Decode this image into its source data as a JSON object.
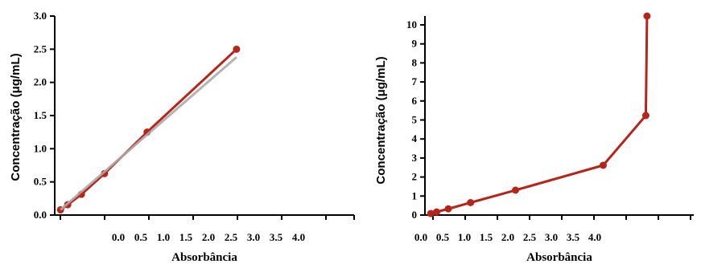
{
  "chart_data": [
    {
      "type": "line",
      "xlabel": "Absorbância",
      "ylabel": "Concentração (μg/mL)",
      "xlim": [
        -0.05,
        4.1
      ],
      "ylim": [
        0,
        3.0
      ],
      "x_tick_labels": [
        "0.0",
        "0.5",
        "1.0",
        "1.5",
        "2.0",
        "2.5",
        "3.0",
        "3.5",
        "4.0"
      ],
      "y_tick_labels": [
        "0.0",
        "0.5",
        "1.0",
        "1.5",
        "2.0",
        "2.5",
        "3.0"
      ],
      "series": [
        {
          "values": [
            [
              0.03,
              0.078
            ],
            [
              0.13,
              0.156
            ],
            [
              0.32,
              0.3125
            ],
            [
              0.64,
              0.625
            ],
            [
              1.23,
              1.25
            ],
            [
              2.47,
              2.5
            ]
          ],
          "color": "#b5251a"
        },
        {
          "kind": "fit",
          "values": [
            [
              0.03,
              0.08
            ],
            [
              2.47,
              2.38
            ]
          ],
          "color": "#b0a8a8"
        }
      ]
    },
    {
      "type": "line",
      "xlabel": "Absorbância",
      "ylabel": "Concentração (μg/mL)",
      "xlim": [
        0,
        4.6
      ],
      "ylim": [
        0,
        10
      ],
      "x_tick_labels": [
        "0.0",
        "0.5",
        "1.0",
        "1.5",
        "2.0",
        "2.5",
        "3.0",
        "3.5",
        "4.0"
      ],
      "y_tick_labels": [
        "0",
        "1",
        "2",
        "3",
        "4",
        "5",
        "6",
        "7",
        "8",
        "9",
        "10"
      ],
      "series": [
        {
          "values": [
            [
              0.1,
              0.078
            ],
            [
              0.2,
              0.156
            ],
            [
              0.4,
              0.3125
            ],
            [
              0.78,
              0.625
            ],
            [
              1.55,
              1.25
            ],
            [
              3.05,
              2.5
            ],
            [
              3.78,
              5
            ],
            [
              3.8,
              10
            ]
          ],
          "color": "#b5251a"
        }
      ]
    }
  ]
}
